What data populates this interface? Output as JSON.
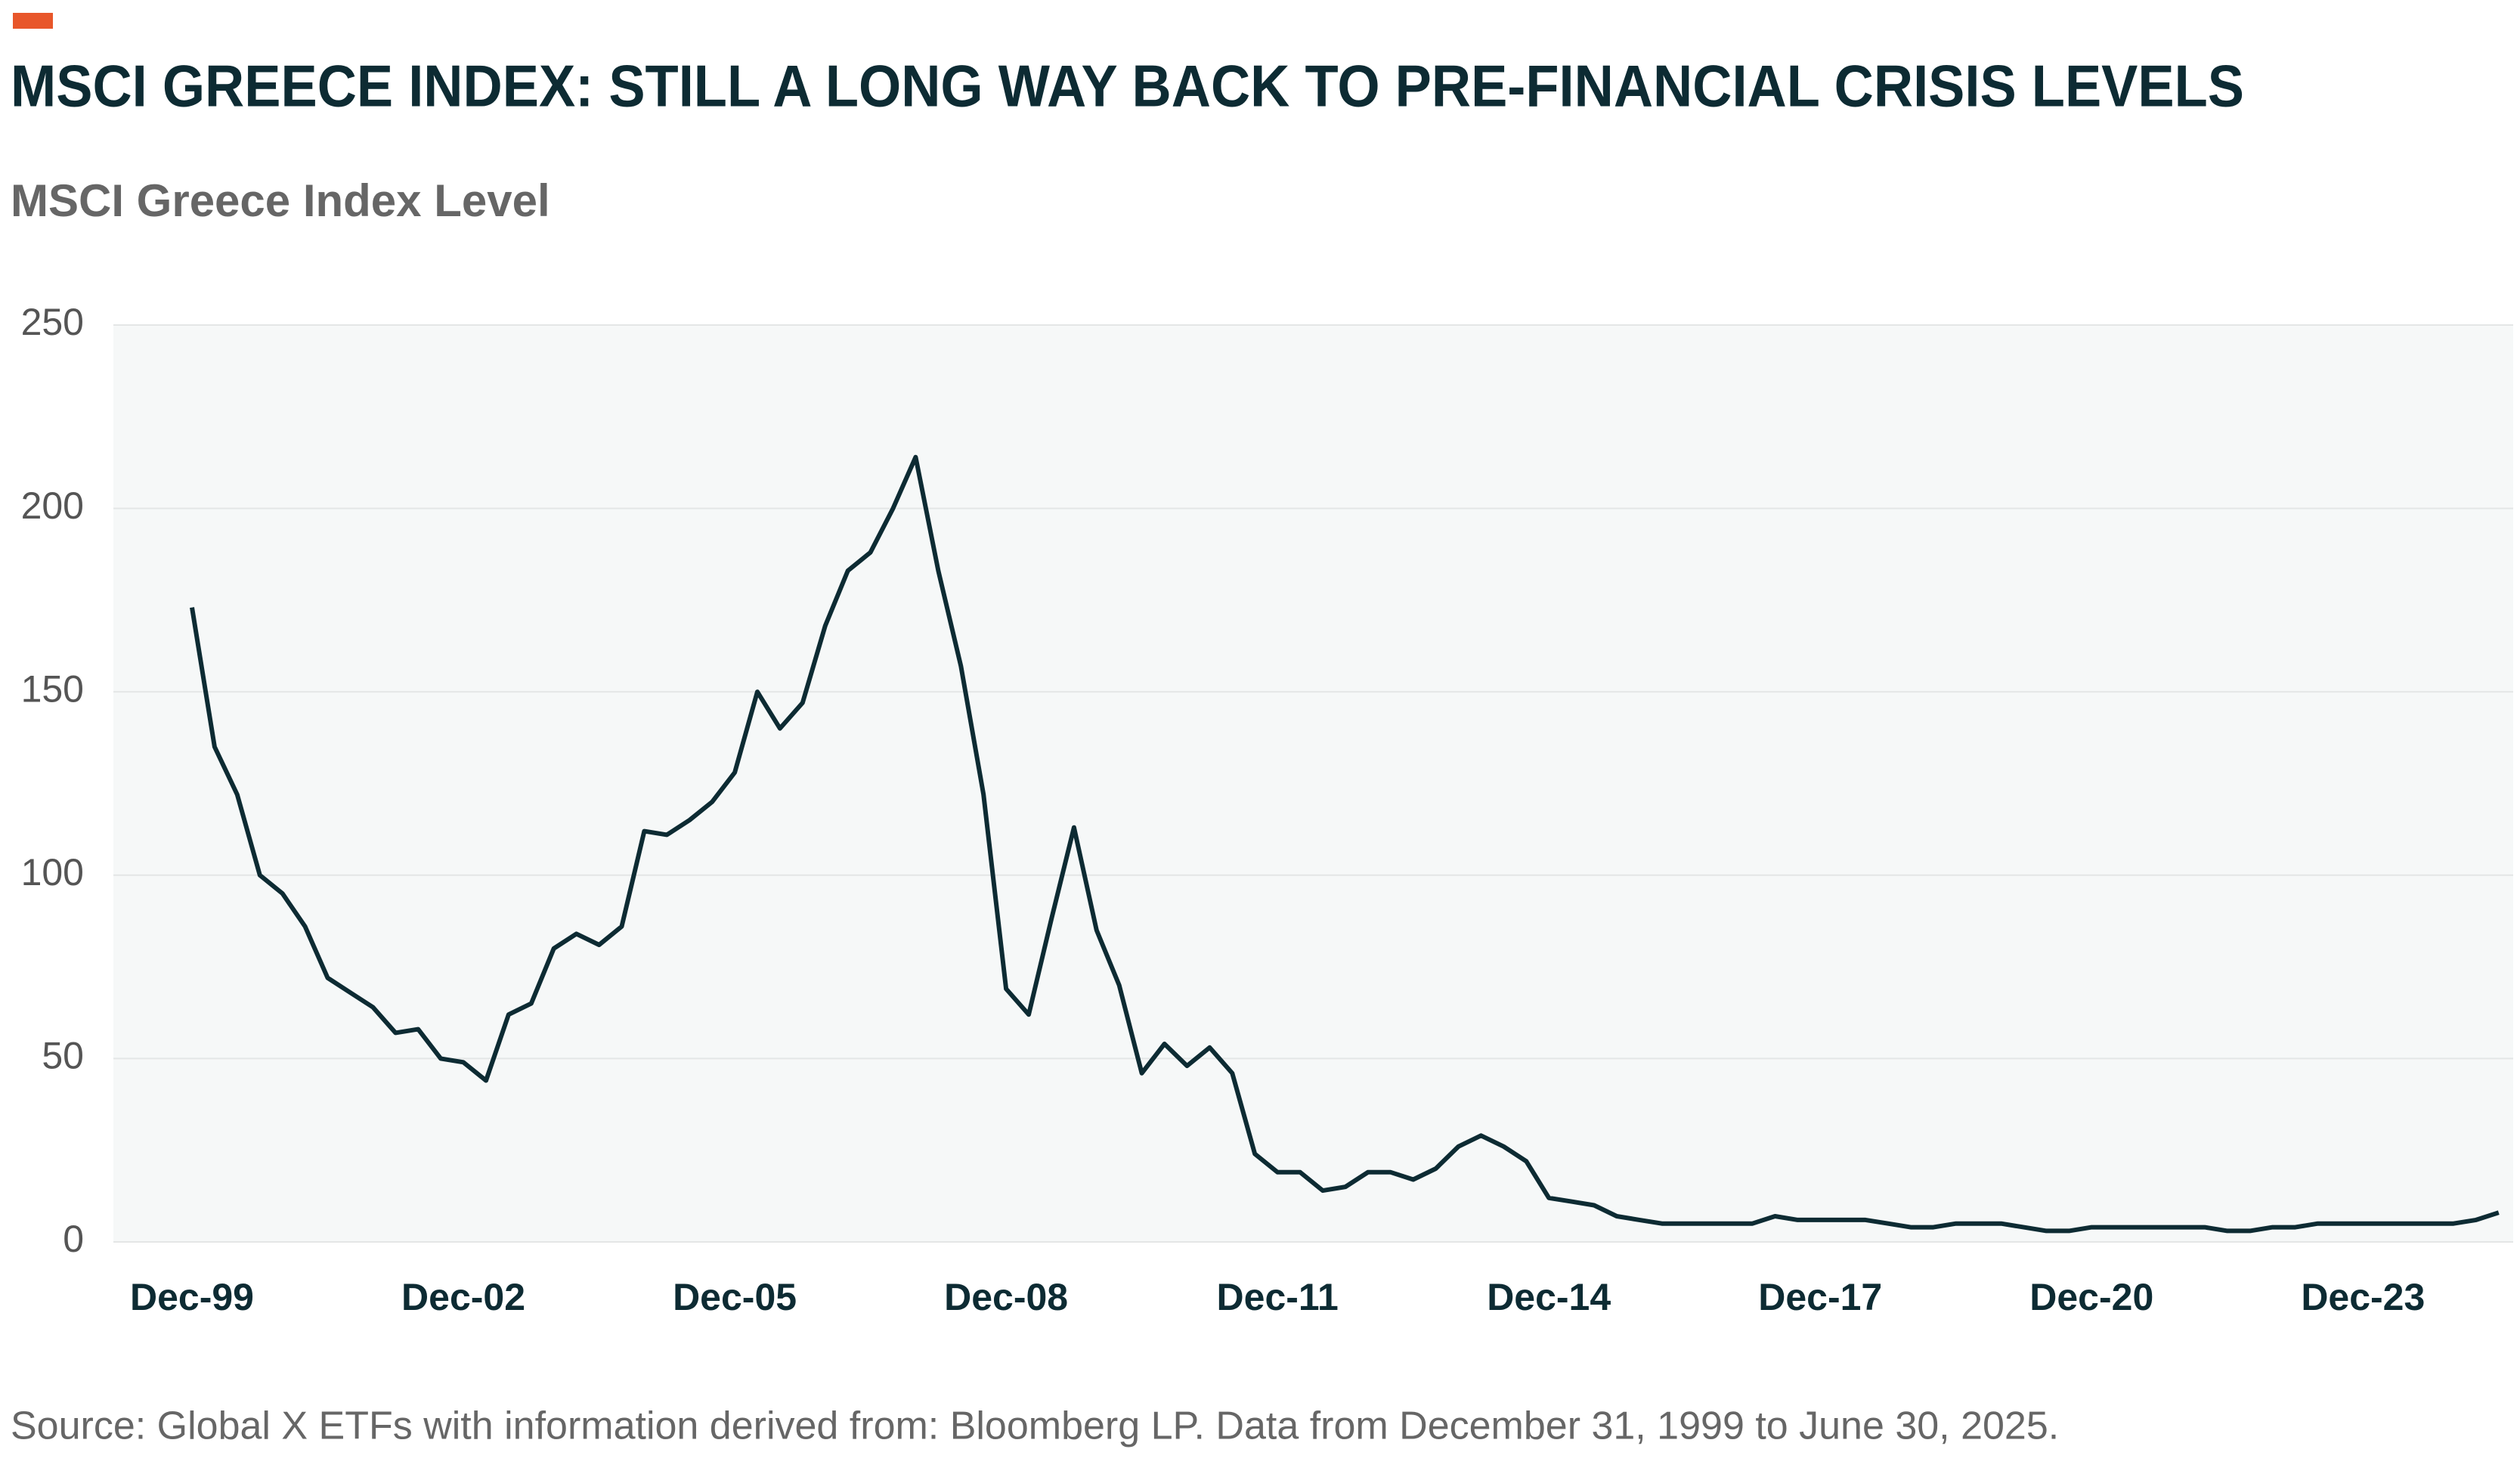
{
  "chart_data": {
    "type": "line",
    "title": "MSCI GREECE INDEX: STILL A LONG WAY BACK TO PRE-FINANCIAL CRISIS LEVELS",
    "subtitle": "MSCI Greece Index Level",
    "source": "Source: Global X ETFs with information derived from: Bloomberg LP. Data from December 31, 1999 to June 30, 2025.",
    "categories": [
      "Dec-99",
      null,
      null,
      null,
      null,
      null,
      null,
      null,
      null,
      null,
      null,
      null,
      "Dec-02",
      null,
      null,
      null,
      null,
      null,
      null,
      null,
      null,
      null,
      null,
      null,
      "Dec-05",
      null,
      null,
      null,
      null,
      null,
      null,
      null,
      null,
      null,
      null,
      null,
      "Dec-08",
      null,
      null,
      null,
      null,
      null,
      null,
      null,
      null,
      null,
      null,
      null,
      "Dec-11",
      null,
      null,
      null,
      null,
      null,
      null,
      null,
      null,
      null,
      null,
      null,
      "Dec-14",
      null,
      null,
      null,
      null,
      null,
      null,
      null,
      null,
      null,
      null,
      null,
      "Dec-17",
      null,
      null,
      null,
      null,
      null,
      null,
      null,
      null,
      null,
      null,
      null,
      "Dec-20",
      null,
      null,
      null,
      null,
      null,
      null,
      null,
      null,
      null,
      null,
      null,
      "Dec-23",
      null,
      null,
      null,
      null,
      null,
      null
    ],
    "series": [
      {
        "name": "MSCI Greece Index",
        "color": "#0d2b33",
        "values": [
          173,
          135,
          122,
          100,
          95,
          86,
          72,
          68,
          64,
          57,
          58,
          50,
          49,
          44,
          62,
          65,
          80,
          84,
          81,
          86,
          112,
          111,
          115,
          120,
          128,
          150,
          140,
          147,
          168,
          183,
          188,
          200,
          214,
          183,
          157,
          122,
          69,
          62,
          88,
          113,
          85,
          70,
          46,
          54,
          48,
          53,
          46,
          24,
          19,
          19,
          14,
          15,
          19,
          19,
          17,
          20,
          26,
          29,
          26,
          22,
          12,
          11,
          10,
          7,
          6,
          5,
          5,
          5,
          5,
          5,
          7,
          6,
          6,
          6,
          6,
          5,
          4,
          4,
          5,
          5,
          5,
          4,
          3,
          3,
          4,
          4,
          4,
          4,
          4,
          4,
          3,
          3,
          4,
          4,
          5,
          5,
          5,
          5,
          5,
          5,
          5,
          6,
          8
        ]
      }
    ],
    "ylim": [
      0,
      250
    ],
    "yticks": [
      0,
      50,
      100,
      150,
      200,
      250
    ],
    "grid": true
  }
}
